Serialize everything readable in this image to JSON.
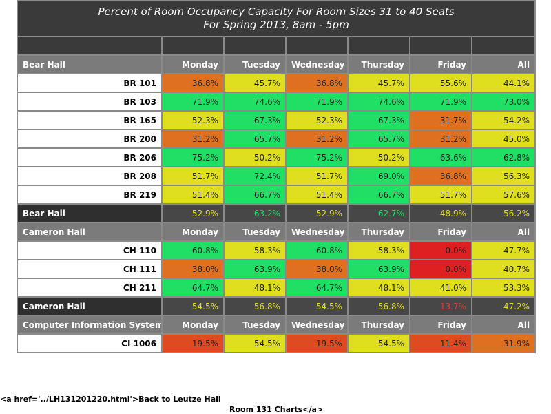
{
  "title_line1": "Percent of Room Occupancy Capacity For Room Sizes 31 to 40 Seats",
  "title_line2": "For Spring 2013, 8am - 5pm",
  "footer_line1": "<a href='../LH131201220.html'>Back to Leutze Hall",
  "footer_line2": "Room 131 Charts</a>",
  "colors": {
    "green": "#1fdf64",
    "yellow": "#dfdf1f",
    "orange": "#df7020",
    "redorange": "#df4b20",
    "red": "#df2020",
    "header_bg": "#7b7b7b",
    "title_bg": "#3a3a3a",
    "summary_bg": "#474747"
  },
  "chart_data": {
    "type": "table",
    "title": "Percent of Room Occupancy Capacity For Room Sizes 31 to 40 Seats",
    "subtitle": "For Spring 2013, 8am - 5pm",
    "columns": [
      "Monday",
      "Tuesday",
      "Wednesday",
      "Thursday",
      "Friday",
      "All"
    ],
    "groups": [
      {
        "name": "Bear Hall",
        "rows": [
          {
            "room": "BR 101",
            "values": [
              "36.8%",
              "45.7%",
              "36.8%",
              "45.7%",
              "55.6%",
              "44.1%"
            ],
            "colors": [
              "orange",
              "yellow",
              "orange",
              "yellow",
              "yellow",
              "yellow"
            ]
          },
          {
            "room": "BR 103",
            "values": [
              "71.9%",
              "74.6%",
              "71.9%",
              "74.6%",
              "71.9%",
              "73.0%"
            ],
            "colors": [
              "green",
              "green",
              "green",
              "green",
              "green",
              "green"
            ]
          },
          {
            "room": "BR 165",
            "values": [
              "52.3%",
              "67.3%",
              "52.3%",
              "67.3%",
              "31.7%",
              "54.2%"
            ],
            "colors": [
              "yellow",
              "green",
              "yellow",
              "green",
              "orange",
              "yellow"
            ]
          },
          {
            "room": "BR 200",
            "values": [
              "31.2%",
              "65.7%",
              "31.2%",
              "65.7%",
              "31.2%",
              "45.0%"
            ],
            "colors": [
              "orange",
              "green",
              "orange",
              "green",
              "orange",
              "yellow"
            ]
          },
          {
            "room": "BR 206",
            "values": [
              "75.2%",
              "50.2%",
              "75.2%",
              "50.2%",
              "63.6%",
              "62.8%"
            ],
            "colors": [
              "green",
              "yellow",
              "green",
              "yellow",
              "green",
              "green"
            ]
          },
          {
            "room": "BR 208",
            "values": [
              "51.7%",
              "72.4%",
              "51.7%",
              "69.0%",
              "36.8%",
              "56.3%"
            ],
            "colors": [
              "yellow",
              "green",
              "yellow",
              "green",
              "orange",
              "yellow"
            ]
          },
          {
            "room": "BR 219",
            "values": [
              "51.4%",
              "66.7%",
              "51.4%",
              "66.7%",
              "51.7%",
              "57.6%"
            ],
            "colors": [
              "yellow",
              "green",
              "yellow",
              "green",
              "yellow",
              "yellow"
            ]
          }
        ],
        "summary": {
          "values": [
            "52.9%",
            "63.2%",
            "52.9%",
            "62.7%",
            "48.9%",
            "56.2%"
          ],
          "colors": [
            "yellow",
            "green",
            "yellow",
            "green",
            "yellow",
            "yellow"
          ]
        }
      },
      {
        "name": "Cameron Hall",
        "rows": [
          {
            "room": "CH 110",
            "values": [
              "60.8%",
              "58.3%",
              "60.8%",
              "58.3%",
              "0.0%",
              "47.7%"
            ],
            "colors": [
              "green",
              "yellow",
              "green",
              "yellow",
              "red",
              "yellow"
            ]
          },
          {
            "room": "CH 111",
            "values": [
              "38.0%",
              "63.9%",
              "38.0%",
              "63.9%",
              "0.0%",
              "40.7%"
            ],
            "colors": [
              "orange",
              "green",
              "orange",
              "green",
              "red",
              "yellow"
            ]
          },
          {
            "room": "CH 211",
            "values": [
              "64.7%",
              "48.1%",
              "64.7%",
              "48.1%",
              "41.0%",
              "53.3%"
            ],
            "colors": [
              "green",
              "yellow",
              "green",
              "yellow",
              "yellow",
              "yellow"
            ]
          }
        ],
        "summary": {
          "values": [
            "54.5%",
            "56.8%",
            "54.5%",
            "56.8%",
            "13.7%",
            "47.2%"
          ],
          "colors": [
            "yellow",
            "yellow",
            "yellow",
            "yellow",
            "red",
            "yellow"
          ]
        }
      },
      {
        "name": "Computer Information Systems",
        "rows": [
          {
            "room": "CI 1006",
            "values": [
              "19.5%",
              "54.5%",
              "19.5%",
              "54.5%",
              "11.4%",
              "31.9%"
            ],
            "colors": [
              "redorange",
              "yellow",
              "redorange",
              "yellow",
              "redorange",
              "orange"
            ]
          }
        ],
        "summary": null
      }
    ]
  }
}
